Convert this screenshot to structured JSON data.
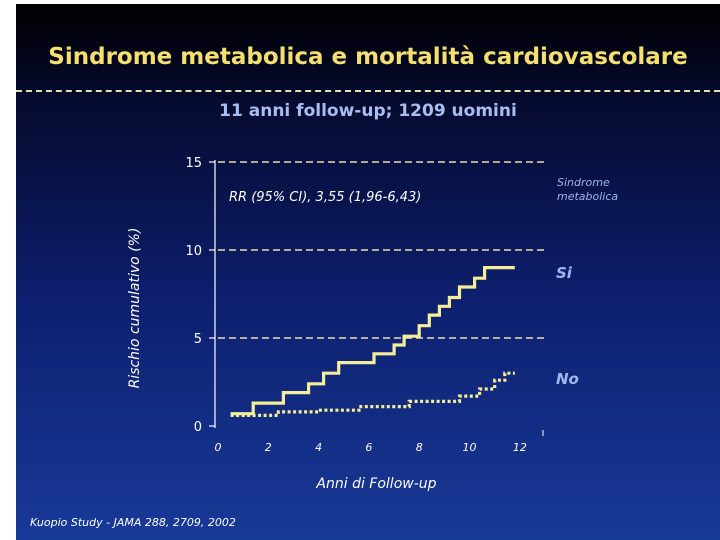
{
  "slide": {
    "title": "Sindrome metabolica e mortalità cardiovascolare",
    "subtitle": "11 anni follow-up; 1209 uomini",
    "citation": "Kuopio Study - JAMA 288, 2709, 2002"
  },
  "chart_data": {
    "type": "line",
    "step": true,
    "xlabel": "Anni di Follow-up",
    "ylabel": "Rischio cumulativo (%)",
    "xlim": [
      0,
      13
    ],
    "ylim": [
      0,
      15
    ],
    "x_ticks": [
      0,
      2,
      4,
      6,
      8,
      10,
      12
    ],
    "y_ticks": [
      0,
      5,
      10,
      15
    ],
    "y_grid": [
      5,
      10,
      15
    ],
    "annotation": "RR (95% CI), 3,55 (1,96-6,43)",
    "legend_title": "Sindrome metabolica",
    "colors": {
      "si": "#f5ee98",
      "no": "#f5ee98",
      "grid": "#e8e0b0"
    },
    "series": [
      {
        "name": "Si",
        "style": "solid",
        "points": [
          [
            0.5,
            0.7
          ],
          [
            1.4,
            0.7
          ],
          [
            1.4,
            1.3
          ],
          [
            2.6,
            1.3
          ],
          [
            2.6,
            1.9
          ],
          [
            3.6,
            1.9
          ],
          [
            3.6,
            2.4
          ],
          [
            4.2,
            2.4
          ],
          [
            4.2,
            3.0
          ],
          [
            4.8,
            3.0
          ],
          [
            4.8,
            3.6
          ],
          [
            6.2,
            3.6
          ],
          [
            6.2,
            4.1
          ],
          [
            7.0,
            4.1
          ],
          [
            7.0,
            4.6
          ],
          [
            7.4,
            4.6
          ],
          [
            7.4,
            5.1
          ],
          [
            8.0,
            5.1
          ],
          [
            8.0,
            5.7
          ],
          [
            8.4,
            5.7
          ],
          [
            8.4,
            6.3
          ],
          [
            8.8,
            6.3
          ],
          [
            8.8,
            6.8
          ],
          [
            9.2,
            6.8
          ],
          [
            9.2,
            7.3
          ],
          [
            9.6,
            7.3
          ],
          [
            9.6,
            7.9
          ],
          [
            10.2,
            7.9
          ],
          [
            10.2,
            8.4
          ],
          [
            10.6,
            8.4
          ],
          [
            10.6,
            9.0
          ],
          [
            11.8,
            9.0
          ]
        ]
      },
      {
        "name": "No",
        "style": "dotted",
        "points": [
          [
            0.5,
            0.6
          ],
          [
            2.4,
            0.6
          ],
          [
            2.4,
            0.8
          ],
          [
            4.0,
            0.8
          ],
          [
            4.0,
            0.9
          ],
          [
            5.6,
            0.9
          ],
          [
            5.6,
            1.1
          ],
          [
            7.6,
            1.1
          ],
          [
            7.6,
            1.4
          ],
          [
            9.6,
            1.4
          ],
          [
            9.6,
            1.7
          ],
          [
            10.4,
            1.7
          ],
          [
            10.4,
            2.1
          ],
          [
            11.0,
            2.1
          ],
          [
            11.0,
            2.6
          ],
          [
            11.4,
            2.6
          ],
          [
            11.4,
            3.0
          ],
          [
            11.8,
            3.0
          ]
        ]
      }
    ]
  }
}
